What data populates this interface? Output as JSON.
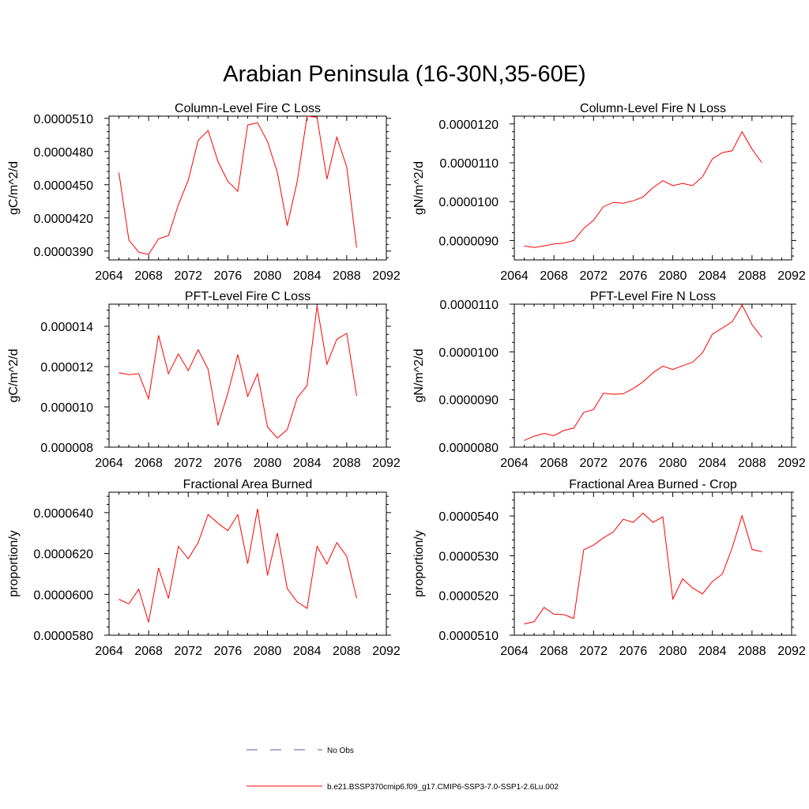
{
  "page": {
    "title": "Arabian Peninsula (16-30N,35-60E)"
  },
  "legend": [
    {
      "label": "No Obs",
      "color": "#5a5ab4",
      "style": "dashed"
    },
    {
      "label": "b.e21.BSSP370cmip6.f09_g17.CMIP6-SSP3-7.0-SSP1-2.6Lu.002",
      "color": "#ff0000",
      "style": "solid"
    }
  ],
  "chart_data": [
    {
      "type": "line",
      "title": "Column-Level Fire C Loss",
      "ylabel": "gC/m^2/d",
      "xlim": [
        2064,
        2092
      ],
      "xticks": [
        "2064",
        "2068",
        "2072",
        "2076",
        "2080",
        "2084",
        "2088",
        "2092"
      ],
      "ylim": [
        3.82e-05,
        5.12e-05
      ],
      "yticks": [
        "0.0000390",
        "0.0000420",
        "0.0000450",
        "0.0000480",
        "0.0000510"
      ],
      "ytick_values": [
        3.9e-05,
        4.2e-05,
        4.5e-05,
        4.8e-05,
        5.1e-05
      ],
      "series": [
        {
          "color": "#ff0000",
          "x": [
            2065,
            2066,
            2067,
            2068,
            2069,
            2070,
            2071,
            2072,
            2073,
            2074,
            2075,
            2076,
            2077,
            2078,
            2079,
            2080,
            2081,
            2082,
            2083,
            2084,
            2085,
            2086,
            2087,
            2088,
            2089
          ],
          "values": [
            4.61e-05,
            4e-05,
            3.89e-05,
            3.87e-05,
            4.01e-05,
            4.04e-05,
            4.32e-05,
            4.54e-05,
            4.9e-05,
            4.99e-05,
            4.71e-05,
            4.53e-05,
            4.44e-05,
            5.04e-05,
            5.06e-05,
            4.89e-05,
            4.61e-05,
            4.13e-05,
            4.53e-05,
            5.12e-05,
            5.11e-05,
            4.55e-05,
            4.93e-05,
            4.66e-05,
            3.93e-05
          ]
        }
      ]
    },
    {
      "type": "line",
      "title": "Column-Level Fire N Loss",
      "ylabel": "gN/m^2/d",
      "xlim": [
        2064,
        2092
      ],
      "xticks": [
        "2064",
        "2068",
        "2072",
        "2076",
        "2080",
        "2084",
        "2088",
        "2092"
      ],
      "ylim": [
        8.5e-06,
        1.22e-05
      ],
      "yticks": [
        "0.0000090",
        "0.0000100",
        "0.0000110",
        "0.0000120"
      ],
      "ytick_values": [
        9e-06,
        1e-05,
        1.1e-05,
        1.2e-05
      ],
      "series": [
        {
          "color": "#ff0000",
          "x": [
            2065,
            2066,
            2067,
            2068,
            2069,
            2070,
            2071,
            2072,
            2073,
            2074,
            2075,
            2076,
            2077,
            2078,
            2079,
            2080,
            2081,
            2082,
            2083,
            2084,
            2085,
            2086,
            2087,
            2088,
            2089
          ],
          "values": [
            8.86e-06,
            8.82e-06,
            8.86e-06,
            8.91e-06,
            8.93e-06,
            9e-06,
            9.31e-06,
            9.52e-06,
            9.87e-06,
            9.98e-06,
            9.96e-06,
            1.002e-05,
            1.012e-05,
            1.036e-05,
            1.054e-05,
            1.041e-05,
            1.047e-05,
            1.041e-05,
            1.064e-05,
            1.11e-05,
            1.126e-05,
            1.131e-05,
            1.18e-05,
            1.135e-05,
            1.1e-05
          ]
        }
      ]
    },
    {
      "type": "line",
      "title": "PFT-Level Fire C Loss",
      "ylabel": "gC/m^2/d",
      "xlim": [
        2064,
        2092
      ],
      "xticks": [
        "2064",
        "2068",
        "2072",
        "2076",
        "2080",
        "2084",
        "2088",
        "2092"
      ],
      "ylim": [
        8e-06,
        1.51e-05
      ],
      "yticks": [
        "0.000008",
        "0.000010",
        "0.000012",
        "0.000014"
      ],
      "ytick_values": [
        8e-06,
        1e-05,
        1.2e-05,
        1.4e-05
      ],
      "series": [
        {
          "color": "#ff0000",
          "x": [
            2065,
            2066,
            2067,
            2068,
            2069,
            2070,
            2071,
            2072,
            2073,
            2074,
            2075,
            2076,
            2077,
            2078,
            2079,
            2080,
            2081,
            2082,
            2083,
            2084,
            2085,
            2086,
            2087,
            2088,
            2089
          ],
          "values": [
            1.17e-05,
            1.16e-05,
            1.165e-05,
            1.04e-05,
            1.355e-05,
            1.165e-05,
            1.263e-05,
            1.18e-05,
            1.284e-05,
            1.187e-05,
            9.08e-06,
            1.068e-05,
            1.26e-05,
            1.052e-05,
            1.165e-05,
            9e-06,
            8.45e-06,
            8.87e-06,
            1.045e-05,
            1.105e-05,
            1.5e-05,
            1.212e-05,
            1.336e-05,
            1.365e-05,
            1.055e-05
          ]
        }
      ]
    },
    {
      "type": "line",
      "title": "PFT-Level Fire N Loss",
      "ylabel": "gN/m^2/d",
      "xlim": [
        2064,
        2092
      ],
      "xticks": [
        "2064",
        "2068",
        "2072",
        "2076",
        "2080",
        "2084",
        "2088",
        "2092"
      ],
      "ylim": [
        8e-06,
        1.1e-05
      ],
      "yticks": [
        "0.0000080",
        "0.0000090",
        "0.0000100",
        "0.0000110"
      ],
      "ytick_values": [
        8e-06,
        9e-06,
        1e-05,
        1.1e-05
      ],
      "series": [
        {
          "color": "#ff0000",
          "x": [
            2065,
            2066,
            2067,
            2068,
            2069,
            2070,
            2071,
            2072,
            2073,
            2074,
            2075,
            2076,
            2077,
            2078,
            2079,
            2080,
            2081,
            2082,
            2083,
            2084,
            2085,
            2086,
            2087,
            2088,
            2089
          ],
          "values": [
            8.14e-06,
            8.23e-06,
            8.29e-06,
            8.24e-06,
            8.35e-06,
            8.4e-06,
            8.73e-06,
            8.79e-06,
            9.13e-06,
            9.11e-06,
            9.12e-06,
            9.23e-06,
            9.37e-06,
            9.56e-06,
            9.7e-06,
            9.63e-06,
            9.71e-06,
            9.78e-06,
            9.98e-06,
            1.037e-05,
            1.05e-05,
            1.063e-05,
            1.098e-05,
            1.057e-05,
            1.03e-05
          ]
        }
      ]
    },
    {
      "type": "line",
      "title": "Fractional Area Burned",
      "ylabel": "proportion/y",
      "xlim": [
        2064,
        2092
      ],
      "xticks": [
        "2064",
        "2068",
        "2072",
        "2076",
        "2080",
        "2084",
        "2088",
        "2092"
      ],
      "ylim": [
        5.8e-05,
        6.5e-05
      ],
      "yticks": [
        "0.0000580",
        "0.0000600",
        "0.0000620",
        "0.0000640"
      ],
      "ytick_values": [
        5.8e-05,
        6e-05,
        6.2e-05,
        6.4e-05
      ],
      "series": [
        {
          "color": "#ff0000",
          "x": [
            2065,
            2066,
            2067,
            2068,
            2069,
            2070,
            2071,
            2072,
            2073,
            2074,
            2075,
            2076,
            2077,
            2078,
            2079,
            2080,
            2081,
            2082,
            2083,
            2084,
            2085,
            2086,
            2087,
            2088,
            2089
          ],
          "values": [
            5.976e-05,
            5.953e-05,
            6.025e-05,
            5.863e-05,
            6.129e-05,
            5.98e-05,
            6.235e-05,
            6.174e-05,
            6.253e-05,
            6.391e-05,
            6.348e-05,
            6.312e-05,
            6.39e-05,
            6.15e-05,
            6.419e-05,
            6.093e-05,
            6.3e-05,
            6.028e-05,
            5.963e-05,
            5.931e-05,
            6.235e-05,
            6.149e-05,
            6.253e-05,
            6.186e-05,
            5.981e-05
          ]
        }
      ]
    },
    {
      "type": "line",
      "title": "Fractional Area Burned - Crop",
      "ylabel": "proportion/y",
      "xlim": [
        2064,
        2092
      ],
      "xticks": [
        "2064",
        "2068",
        "2072",
        "2076",
        "2080",
        "2084",
        "2088",
        "2092"
      ],
      "ylim": [
        5.1e-05,
        5.46e-05
      ],
      "yticks": [
        "0.0000510",
        "0.0000520",
        "0.0000530",
        "0.0000540"
      ],
      "ytick_values": [
        5.1e-05,
        5.2e-05,
        5.3e-05,
        5.4e-05
      ],
      "series": [
        {
          "color": "#ff0000",
          "x": [
            2065,
            2066,
            2067,
            2068,
            2069,
            2070,
            2071,
            2072,
            2073,
            2074,
            2075,
            2076,
            2077,
            2078,
            2079,
            2080,
            2081,
            2082,
            2083,
            2084,
            2085,
            2086,
            2087,
            2088,
            2089
          ],
          "values": [
            5.128e-05,
            5.134e-05,
            5.17e-05,
            5.153e-05,
            5.152e-05,
            5.142e-05,
            5.315e-05,
            5.327e-05,
            5.345e-05,
            5.36e-05,
            5.392e-05,
            5.384e-05,
            5.407e-05,
            5.384e-05,
            5.398e-05,
            5.191e-05,
            5.242e-05,
            5.219e-05,
            5.204e-05,
            5.235e-05,
            5.254e-05,
            5.32e-05,
            5.401e-05,
            5.316e-05,
            5.31e-05
          ]
        }
      ]
    }
  ]
}
